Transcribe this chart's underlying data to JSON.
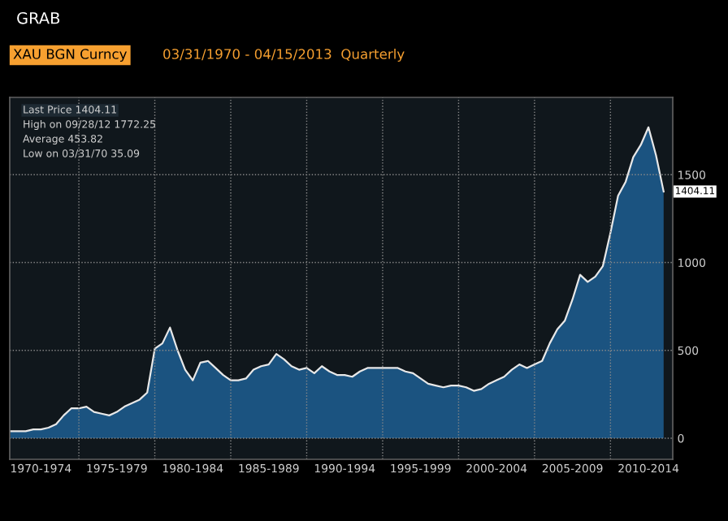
{
  "chart_data": {
    "type": "area",
    "title": "XAU BGN Curncy",
    "subtitle": "03/31/1970 - 04/15/2013  Quarterly",
    "annotations": [
      "GRAB",
      "Last Price 1404.11",
      "High on 09/28/12 1772.25",
      "Average 453.82",
      "Low on 03/31/70 35.09"
    ],
    "categories": [
      null,
      null,
      null,
      null,
      "1970-1974",
      null,
      null,
      null,
      null,
      null,
      null,
      null,
      null,
      null,
      "1975-1979",
      null,
      null,
      null,
      null,
      null,
      null,
      null,
      null,
      null,
      "1980-1984",
      null,
      null,
      null,
      null,
      null,
      null,
      null,
      null,
      null,
      "1985-1989",
      null,
      null,
      null,
      null,
      null,
      null,
      null,
      null,
      null,
      "1990-1994",
      null,
      null,
      null,
      null,
      null,
      null,
      null,
      null,
      null,
      "1995-1999",
      null,
      null,
      null,
      null,
      null,
      null,
      null,
      null,
      null,
      "2000-2004",
      null,
      null,
      null,
      null,
      null,
      null,
      null,
      null,
      null,
      "2005-2009",
      null,
      null,
      null,
      null,
      null,
      null,
      null,
      null,
      null,
      "2010-2014",
      null,
      null
    ],
    "series": [
      {
        "color": "#1d5a8c",
        "values": [
          40,
          40,
          40,
          50,
          50,
          60,
          80,
          130,
          170,
          170,
          180,
          150,
          140,
          130,
          150,
          180,
          200,
          220,
          260,
          510,
          540,
          630,
          500,
          390,
          330,
          430,
          440,
          400,
          360,
          330,
          330,
          340,
          390,
          410,
          420,
          480,
          450,
          410,
          390,
          400,
          370,
          410,
          380,
          360,
          360,
          350,
          380,
          400,
          400,
          400,
          400,
          400,
          380,
          370,
          340,
          310,
          300,
          290,
          300,
          300,
          290,
          270,
          280,
          310,
          330,
          350,
          390,
          420,
          400,
          420,
          440,
          540,
          620,
          670,
          790,
          930,
          890,
          920,
          980,
          1170,
          1380,
          1460,
          1600,
          1670,
          1770,
          1610,
          1404.11
        ],
        "value_labels": [
          null,
          null,
          null,
          null,
          null,
          null,
          null,
          null,
          null,
          null,
          null,
          null,
          null,
          null,
          null,
          null,
          null,
          null,
          null,
          null,
          null,
          null,
          null,
          null,
          null,
          null,
          null,
          null,
          null,
          null,
          null,
          null,
          null,
          null,
          null,
          null,
          null,
          null,
          null,
          null,
          null,
          null,
          null,
          null,
          null,
          null,
          null,
          null,
          null,
          null,
          null,
          null,
          null,
          null,
          null,
          null,
          null,
          null,
          null,
          null,
          null,
          null,
          null,
          null,
          null,
          null,
          null,
          null,
          null,
          null,
          null,
          null,
          null,
          null,
          null,
          null,
          null,
          null,
          null,
          null,
          null,
          null,
          null,
          null,
          null,
          null,
          "1404.11"
        ]
      }
    ],
    "ylim": [
      -120,
      1940
    ],
    "yticks": [
      0,
      500,
      1000,
      1500
    ],
    "grid": true,
    "line_style": "solid",
    "marker": "none"
  }
}
